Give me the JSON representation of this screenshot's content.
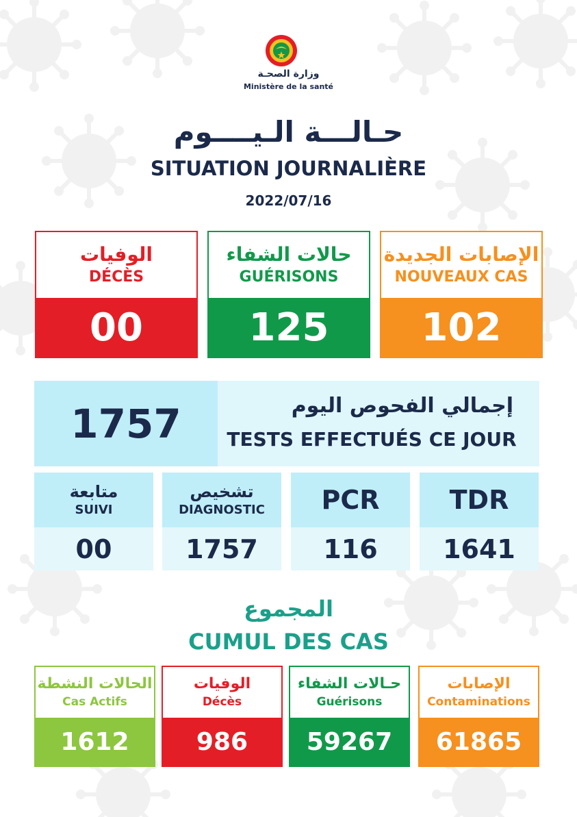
{
  "colors": {
    "navy": "#1b2a4a",
    "red": "#e41e26",
    "green": "#11994a",
    "orange": "#f6901e",
    "lightgreen": "#8dc63f",
    "cyan_dark": "#bfeef9",
    "cyan_light": "#e4f7fb",
    "teal": "#1aa08a"
  },
  "header": {
    "logo_icon": "ministry-emblem-icon",
    "ministry_ar": "وزارة الصحـة",
    "ministry_fr": "Ministère de la santé",
    "title_ar": "حـالـــة الـيــــوم",
    "title_fr": "SITUATION JOURNALIÈRE",
    "date": "2022/07/16"
  },
  "daily": {
    "deaths": {
      "label_ar": "الوفيات",
      "label_fr": "DÉCÈS",
      "value": "00"
    },
    "recoveries": {
      "label_ar": "حالات الشفاء",
      "label_fr": "GUÉRISONS",
      "value": "125"
    },
    "new_cases": {
      "label_ar": "الإصابات الجديدة",
      "label_fr": "NOUVEAUX CAS",
      "value": "102"
    }
  },
  "tests": {
    "total": "1757",
    "label_ar": "إجمالي الفحوص اليوم",
    "label_fr": "TESTS EFFECTUÉS CE JOUR"
  },
  "test_breakdown": {
    "suivi": {
      "label_ar": "متابعة",
      "label_fr": "SUIVI",
      "value": "00"
    },
    "diagnostic": {
      "label_ar": "تشخيص",
      "label_fr": "DIAGNOSTIC",
      "value": "1757"
    },
    "pcr": {
      "label": "PCR",
      "value": "116"
    },
    "tdr": {
      "label": "TDR",
      "value": "1641"
    }
  },
  "cumul": {
    "title_ar": "المجموع",
    "title_fr": "CUMUL DES CAS",
    "active": {
      "label_ar": "الحالات النشطة",
      "label_fr": "Cas Actifs",
      "value": "1612"
    },
    "deaths": {
      "label_ar": "الوفيات",
      "label_fr": "Décès",
      "value": "986"
    },
    "recoveries": {
      "label_ar": "حـالات الشفاء",
      "label_fr": "Guérisons",
      "value": "59267"
    },
    "contaminations": {
      "label_ar": "الإصابات",
      "label_fr": "Contaminations",
      "value": "61865"
    }
  }
}
